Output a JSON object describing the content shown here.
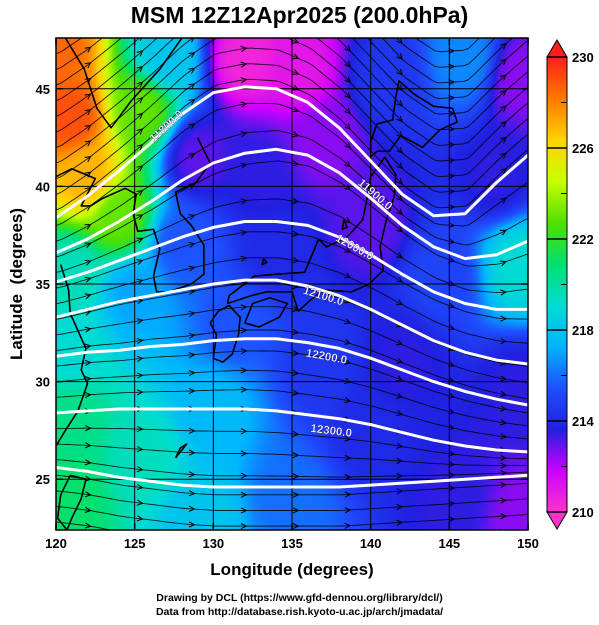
{
  "title": "MSM 12Z12Apr2025 (200.0hPa)",
  "credits": {
    "line1": "Drawing by DCL (https://www.gfd-dennou.org/library/dcl/)",
    "line2": "Data from http://database.rish.kyoto-u.ac.jp/arch/jmadata/"
  },
  "chart_data": {
    "type": "heatmap",
    "title": "MSM 12Z12Apr2025 (200.0hPa)",
    "xlabel": "Longitude (degrees)",
    "ylabel": "Latitude  (degrees)",
    "xlim": [
      120,
      150
    ],
    "ylim": [
      22.4,
      47.6
    ],
    "x_ticks": [
      120,
      125,
      130,
      135,
      140,
      145,
      150
    ],
    "y_ticks": [
      25,
      30,
      35,
      40,
      45
    ],
    "grid": true,
    "colorbar": {
      "ticks": [
        210,
        214,
        218,
        222,
        226,
        230
      ],
      "range": [
        210,
        230
      ],
      "colors": [
        "#ff33cc",
        "#cc00ff",
        "#2020e0",
        "#1e50ff",
        "#00b4ff",
        "#00dcd2",
        "#00e070",
        "#50e000",
        "#c8ff00",
        "#ffd200",
        "#ff7800",
        "#ff1e1e"
      ]
    },
    "contours": [
      {
        "label": "11800.0",
        "points": [
          [
            120,
            38.4
          ],
          [
            122,
            39.5
          ],
          [
            124,
            40.8
          ],
          [
            126,
            42.2
          ],
          [
            128,
            43.7
          ],
          [
            130,
            44.8
          ],
          [
            132,
            45.1
          ],
          [
            134,
            45.0
          ],
          [
            136,
            44.3
          ],
          [
            138,
            43.0
          ],
          [
            140,
            41.3
          ],
          [
            142,
            39.6
          ],
          [
            144,
            38.5
          ],
          [
            146,
            38.6
          ],
          [
            148,
            40.2
          ],
          [
            150,
            41.6
          ]
        ]
      },
      {
        "label": "11900.0",
        "points": [
          [
            120,
            36.6
          ],
          [
            122,
            37.3
          ],
          [
            124,
            38.2
          ],
          [
            126,
            39.2
          ],
          [
            128,
            40.3
          ],
          [
            130,
            41.2
          ],
          [
            132,
            41.7
          ],
          [
            134,
            41.9
          ],
          [
            136,
            41.6
          ],
          [
            138,
            40.7
          ],
          [
            140,
            39.4
          ],
          [
            142,
            38.0
          ],
          [
            144,
            36.9
          ],
          [
            146,
            36.3
          ],
          [
            148,
            36.5
          ],
          [
            150,
            37.2
          ]
        ]
      },
      {
        "label": "12000.0",
        "points": [
          [
            120,
            35.1
          ],
          [
            122,
            35.6
          ],
          [
            124,
            36.2
          ],
          [
            126,
            36.8
          ],
          [
            128,
            37.4
          ],
          [
            130,
            37.9
          ],
          [
            132,
            38.2
          ],
          [
            134,
            38.2
          ],
          [
            136,
            38.0
          ],
          [
            138,
            37.4
          ],
          [
            140,
            36.5
          ],
          [
            142,
            35.5
          ],
          [
            144,
            34.6
          ],
          [
            146,
            34.0
          ],
          [
            148,
            33.7
          ],
          [
            150,
            33.7
          ]
        ]
      },
      {
        "label": "12100.0",
        "points": [
          [
            120,
            33.3
          ],
          [
            122,
            33.7
          ],
          [
            124,
            34.1
          ],
          [
            126,
            34.4
          ],
          [
            128,
            34.7
          ],
          [
            130,
            35.0
          ],
          [
            132,
            35.2
          ],
          [
            134,
            35.2
          ],
          [
            136,
            34.9
          ],
          [
            138,
            34.4
          ],
          [
            140,
            33.7
          ],
          [
            142,
            32.9
          ],
          [
            144,
            32.1
          ],
          [
            146,
            31.5
          ],
          [
            148,
            31.1
          ],
          [
            150,
            30.9
          ]
        ]
      },
      {
        "label": "12200.0",
        "points": [
          [
            120,
            31.3
          ],
          [
            122,
            31.5
          ],
          [
            124,
            31.6
          ],
          [
            126,
            31.8
          ],
          [
            128,
            31.9
          ],
          [
            130,
            32.1
          ],
          [
            132,
            32.2
          ],
          [
            134,
            32.2
          ],
          [
            136,
            32.0
          ],
          [
            138,
            31.7
          ],
          [
            140,
            31.2
          ],
          [
            142,
            30.6
          ],
          [
            144,
            30.0
          ],
          [
            146,
            29.5
          ],
          [
            148,
            29.1
          ],
          [
            150,
            28.8
          ]
        ]
      },
      {
        "label": "12300.0",
        "points": [
          [
            120,
            28.4
          ],
          [
            122,
            28.5
          ],
          [
            124,
            28.6
          ],
          [
            126,
            28.6
          ],
          [
            128,
            28.6
          ],
          [
            130,
            28.6
          ],
          [
            132,
            28.6
          ],
          [
            134,
            28.5
          ],
          [
            136,
            28.3
          ],
          [
            138,
            28.1
          ],
          [
            140,
            27.8
          ],
          [
            142,
            27.4
          ],
          [
            144,
            27.0
          ],
          [
            146,
            26.7
          ],
          [
            148,
            26.5
          ],
          [
            150,
            26.4
          ]
        ]
      },
      {
        "label": "",
        "points": [
          [
            120,
            25.6
          ],
          [
            122,
            25.4
          ],
          [
            124,
            25.1
          ],
          [
            126,
            24.9
          ],
          [
            128,
            24.7
          ],
          [
            130,
            24.6
          ],
          [
            132,
            24.6
          ],
          [
            134,
            24.6
          ],
          [
            136,
            24.6
          ],
          [
            138,
            24.6
          ],
          [
            140,
            24.7
          ],
          [
            142,
            24.8
          ],
          [
            144,
            24.9
          ],
          [
            146,
            25.0
          ],
          [
            148,
            25.1
          ],
          [
            150,
            25.2
          ]
        ]
      }
    ],
    "contour_label_positions": [
      {
        "label": "11800.0",
        "x": 127.0,
        "y": 43.1
      },
      {
        "label": "11900.0",
        "x": 140.3,
        "y": 39.6
      },
      {
        "label": "12000.0",
        "x": 139.0,
        "y": 36.9
      },
      {
        "label": "12100.0",
        "x": 137.0,
        "y": 34.4
      },
      {
        "label": "12200.0",
        "x": 137.2,
        "y": 31.3
      },
      {
        "label": "12300.0",
        "x": 137.5,
        "y": 27.5
      }
    ],
    "temperature_anchors": [
      {
        "x": 120,
        "y": 47,
        "value": 228.5
      },
      {
        "x": 121,
        "y": 43.5,
        "value": 229
      },
      {
        "x": 122,
        "y": 40.5,
        "value": 227
      },
      {
        "x": 124,
        "y": 38.5,
        "value": 223
      },
      {
        "x": 125.5,
        "y": 44,
        "value": 223
      },
      {
        "x": 127,
        "y": 46.5,
        "value": 218
      },
      {
        "x": 129,
        "y": 41.5,
        "value": 213
      },
      {
        "x": 132,
        "y": 46.5,
        "value": 210.5
      },
      {
        "x": 135.5,
        "y": 46,
        "value": 211
      },
      {
        "x": 133,
        "y": 40.5,
        "value": 213.5
      },
      {
        "x": 137,
        "y": 42.5,
        "value": 212.5
      },
      {
        "x": 141,
        "y": 45.5,
        "value": 214.5
      },
      {
        "x": 146,
        "y": 46.5,
        "value": 216.5
      },
      {
        "x": 149.5,
        "y": 45.5,
        "value": 212.5
      },
      {
        "x": 148,
        "y": 40.5,
        "value": 213.5
      },
      {
        "x": 149.5,
        "y": 36,
        "value": 219
      },
      {
        "x": 144.5,
        "y": 35.5,
        "value": 215
      },
      {
        "x": 140,
        "y": 38,
        "value": 213
      },
      {
        "x": 134,
        "y": 36.5,
        "value": 214
      },
      {
        "x": 131.5,
        "y": 33,
        "value": 215.5
      },
      {
        "x": 128,
        "y": 37,
        "value": 215.5
      },
      {
        "x": 125,
        "y": 34.5,
        "value": 217
      },
      {
        "x": 121,
        "y": 35.5,
        "value": 219.5
      },
      {
        "x": 121,
        "y": 31.5,
        "value": 219
      },
      {
        "x": 121,
        "y": 28,
        "value": 220.5
      },
      {
        "x": 121,
        "y": 24,
        "value": 221
      },
      {
        "x": 125.5,
        "y": 26,
        "value": 219.5
      },
      {
        "x": 129,
        "y": 23,
        "value": 218
      },
      {
        "x": 130,
        "y": 28.5,
        "value": 217.5
      },
      {
        "x": 135,
        "y": 24,
        "value": 216
      },
      {
        "x": 140,
        "y": 27.5,
        "value": 214
      },
      {
        "x": 142,
        "y": 31,
        "value": 213.5
      },
      {
        "x": 145.5,
        "y": 24,
        "value": 213.5
      },
      {
        "x": 149.5,
        "y": 23,
        "value": 212.5
      },
      {
        "x": 149.5,
        "y": 29.5,
        "value": 213.5
      },
      {
        "x": 137,
        "y": 31,
        "value": 214.5
      }
    ]
  }
}
